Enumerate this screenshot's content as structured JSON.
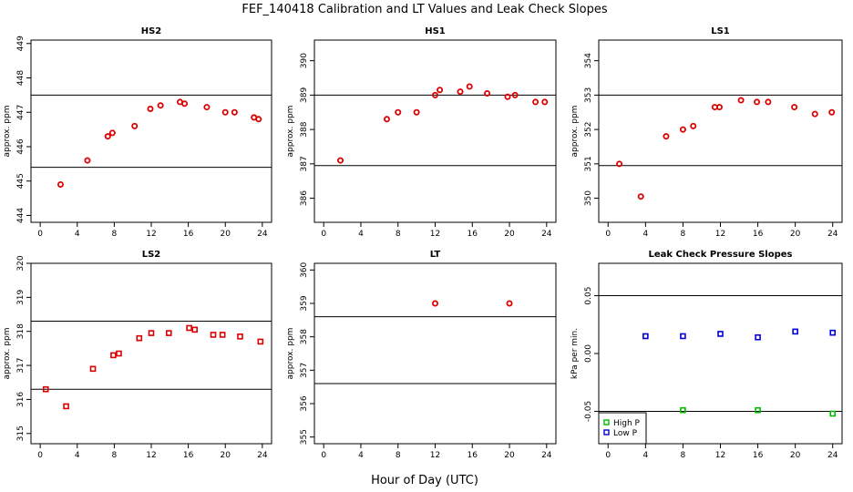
{
  "figure": {
    "title": "FEF_140418  Calibration and LT Values and Leak Check Slopes",
    "xlabel": "Hour of Day (UTC)"
  },
  "chart_data": [
    {
      "type": "scatter",
      "title": "HS2",
      "ylabel": "approx. ppm",
      "xlim": [
        -1,
        25
      ],
      "ylim": [
        443.8,
        449.1
      ],
      "xticks": [
        0,
        4,
        8,
        12,
        16,
        20,
        24
      ],
      "yticks": [
        444,
        445,
        446,
        447,
        448,
        449
      ],
      "hlines": [
        445.4,
        447.5
      ],
      "marker": "circle",
      "color": "#dd0000",
      "series": [
        {
          "x": [
            2.2,
            5.1,
            7.3,
            7.8,
            10.2,
            11.9,
            13.0,
            15.1,
            15.6,
            18.0,
            20.0,
            21.0,
            23.1,
            23.6
          ],
          "y": [
            444.9,
            445.6,
            446.3,
            446.4,
            446.6,
            447.1,
            447.2,
            447.3,
            447.25,
            447.15,
            447.0,
            447.0,
            446.85,
            446.8
          ]
        }
      ]
    },
    {
      "type": "scatter",
      "title": "HS1",
      "ylabel": "approx. ppm",
      "xlim": [
        -1,
        25
      ],
      "ylim": [
        385.3,
        390.6
      ],
      "xticks": [
        0,
        4,
        8,
        12,
        16,
        20,
        24
      ],
      "yticks": [
        386,
        387,
        388,
        389,
        390
      ],
      "hlines": [
        386.95,
        389.0
      ],
      "marker": "circle",
      "color": "#dd0000",
      "series": [
        {
          "x": [
            1.8,
            6.8,
            8.0,
            10.0,
            12.0,
            12.5,
            14.7,
            15.7,
            17.6,
            19.8,
            20.6,
            22.8,
            23.8
          ],
          "y": [
            387.1,
            388.3,
            388.5,
            388.5,
            389.0,
            389.15,
            389.1,
            389.25,
            389.05,
            388.95,
            389.0,
            388.8,
            388.8
          ]
        }
      ]
    },
    {
      "type": "scatter",
      "title": "LS1",
      "ylabel": "approx. ppm",
      "xlim": [
        -1,
        25
      ],
      "ylim": [
        349.3,
        354.6
      ],
      "xticks": [
        0,
        4,
        8,
        12,
        16,
        20,
        24
      ],
      "yticks": [
        350,
        351,
        352,
        353,
        354
      ],
      "hlines": [
        350.95,
        353.0
      ],
      "marker": "circle",
      "color": "#dd0000",
      "series": [
        {
          "x": [
            1.2,
            3.5,
            6.2,
            8.0,
            9.1,
            11.4,
            11.9,
            14.2,
            15.9,
            17.1,
            19.9,
            22.1,
            23.9
          ],
          "y": [
            351.0,
            350.05,
            351.8,
            352.0,
            352.1,
            352.65,
            352.65,
            352.85,
            352.8,
            352.8,
            352.65,
            352.45,
            352.5
          ]
        }
      ]
    },
    {
      "type": "scatter",
      "title": "LS2",
      "ylabel": "approx. ppm",
      "xlim": [
        -1,
        25
      ],
      "ylim": [
        314.7,
        320.0
      ],
      "xticks": [
        0,
        4,
        8,
        12,
        16,
        20,
        24
      ],
      "yticks": [
        315,
        316,
        317,
        318,
        319,
        320
      ],
      "hlines": [
        316.3,
        318.3
      ],
      "marker": "square",
      "color": "#dd0000",
      "series": [
        {
          "x": [
            0.6,
            2.8,
            5.7,
            7.9,
            8.5,
            10.7,
            12.0,
            13.9,
            16.1,
            16.7,
            18.7,
            19.7,
            21.6,
            23.8
          ],
          "y": [
            316.3,
            315.8,
            316.9,
            317.3,
            317.35,
            317.8,
            317.95,
            317.95,
            318.1,
            318.05,
            317.9,
            317.9,
            317.85,
            317.7
          ]
        }
      ]
    },
    {
      "type": "scatter",
      "title": "LT",
      "ylabel": "approx. ppm",
      "xlim": [
        -1,
        25
      ],
      "ylim": [
        354.8,
        360.2
      ],
      "xticks": [
        0,
        4,
        8,
        12,
        16,
        20,
        24
      ],
      "yticks": [
        355,
        356,
        357,
        358,
        359,
        360
      ],
      "hlines": [
        356.6,
        358.6
      ],
      "marker": "circle",
      "color": "#dd0000",
      "series": [
        {
          "x": [
            12.0,
            20.0
          ],
          "y": [
            359.0,
            359.0
          ]
        }
      ]
    },
    {
      "type": "scatter",
      "title": "Leak Check Pressure Slopes",
      "ylabel": "kPa per min.",
      "xlim": [
        -1,
        25
      ],
      "ylim": [
        -0.078,
        0.078
      ],
      "xticks": [
        0,
        4,
        8,
        12,
        16,
        20,
        24
      ],
      "yticks": [
        -0.05,
        0.0,
        0.05
      ],
      "hlines": [
        -0.05,
        0.05
      ],
      "legend": "bottom-left",
      "series": [
        {
          "name": "High P",
          "color": "#00bb00",
          "marker": "square",
          "x": [
            8.0,
            16.0,
            24.0
          ],
          "y": [
            -0.049,
            -0.049,
            -0.052
          ]
        },
        {
          "name": "Low P",
          "color": "#0000dd",
          "marker": "square",
          "x": [
            4.0,
            8.0,
            12.0,
            16.0,
            20.0,
            24.0
          ],
          "y": [
            0.015,
            0.015,
            0.017,
            0.014,
            0.019,
            0.018
          ]
        }
      ]
    }
  ]
}
